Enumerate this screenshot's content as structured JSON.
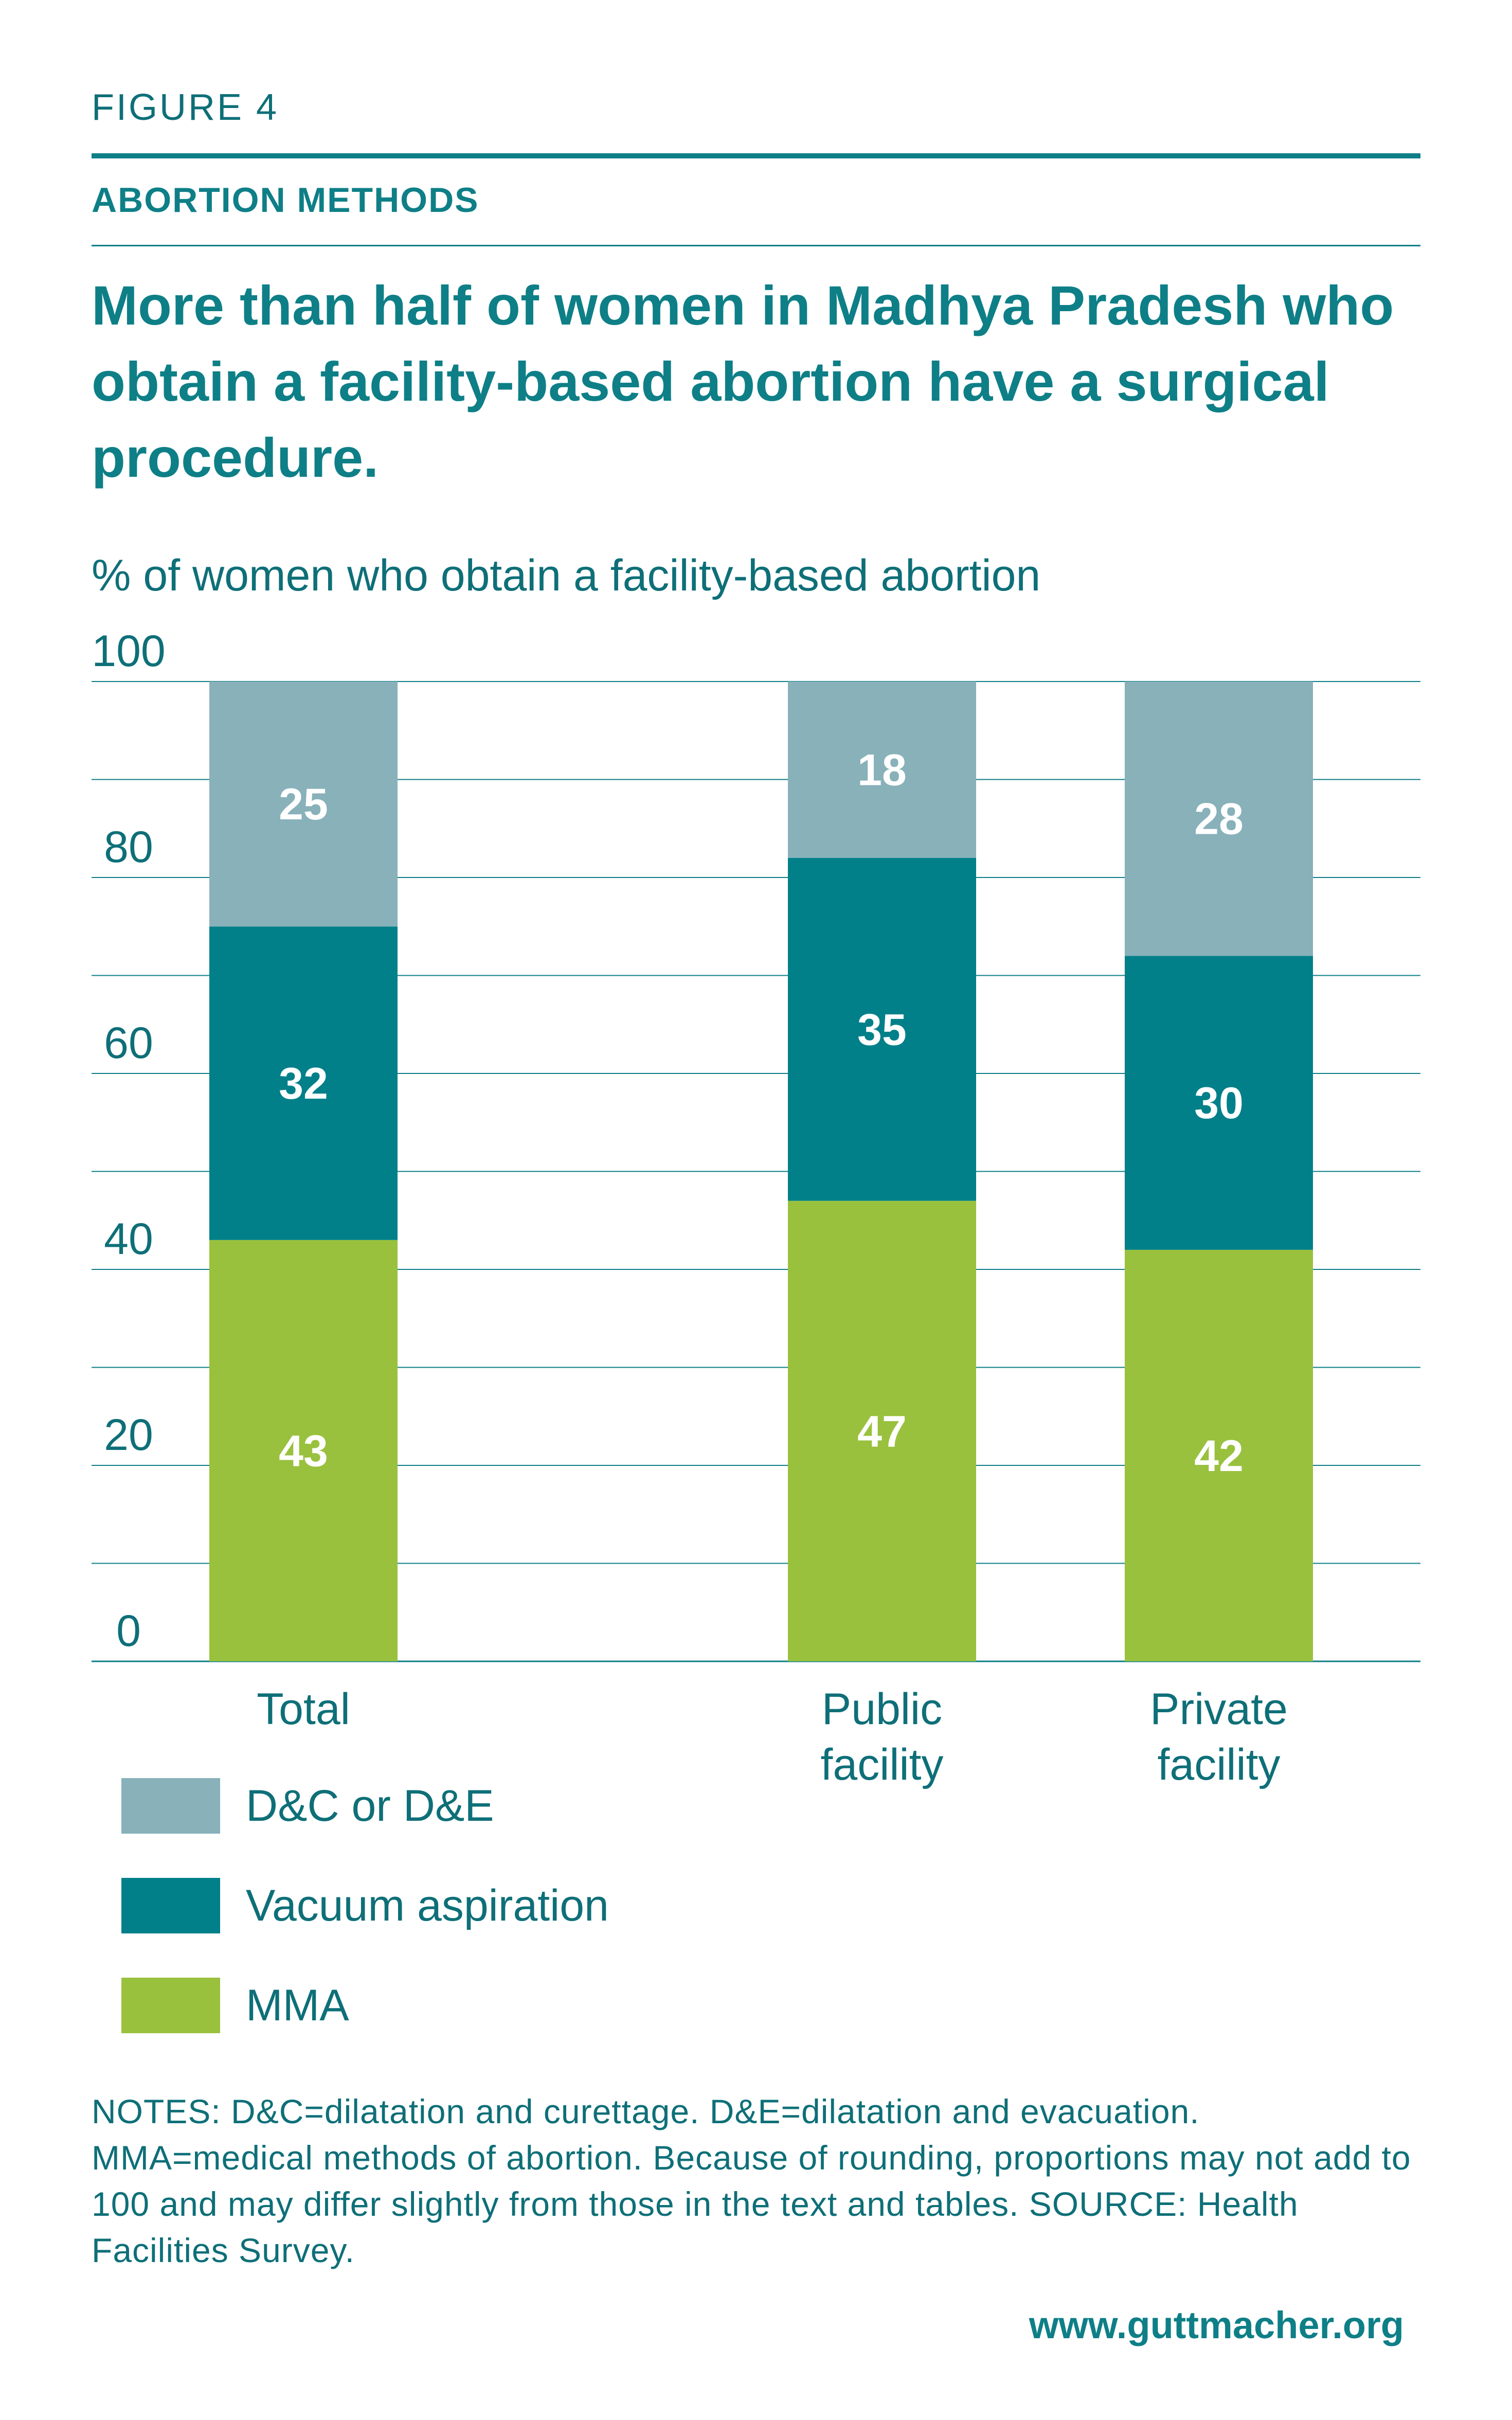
{
  "figure_label": "FIGURE 4",
  "section_label": "ABORTION METHODS",
  "headline": "More than half of women in Madhya Pradesh who obtain a facility-based abortion have a surgical procedure.",
  "notes": "NOTES: D&C=dilatation and curettage. D&E=dilatation and evacuation. MMA=medical methods of abortion. Because of rounding, proportions may not add to 100 and may differ slightly from those in the text and tables. SOURCE: Health Facilities Survey.",
  "url": "www.guttmacher.org",
  "colors": {
    "accent": "#0e7f87",
    "text": "#0e6f78",
    "dc_de": "#88b1ba",
    "vacuum": "#01808a",
    "mma": "#99c13d",
    "grid": "#0e7f87"
  },
  "legend": [
    {
      "label": "D&C or D&E",
      "color": "#88b1ba"
    },
    {
      "label": "Vacuum aspiration",
      "color": "#01808a"
    },
    {
      "label": "MMA",
      "color": "#99c13d"
    }
  ],
  "chart_data": {
    "type": "bar",
    "stacked": true,
    "ylabel": "% of women who obtain a facility-based abortion",
    "ylim": [
      0,
      100
    ],
    "yticks": [
      0,
      20,
      40,
      60,
      80,
      100
    ],
    "grid": true,
    "categories": [
      "Total",
      "Public facility",
      "Private facility"
    ],
    "series": [
      {
        "name": "MMA",
        "color": "#99c13d",
        "values": [
          43,
          47,
          42
        ]
      },
      {
        "name": "Vacuum aspiration",
        "color": "#01808a",
        "values": [
          32,
          35,
          30
        ]
      },
      {
        "name": "D&C or D&E",
        "color": "#88b1ba",
        "values": [
          25,
          18,
          28
        ]
      }
    ]
  }
}
